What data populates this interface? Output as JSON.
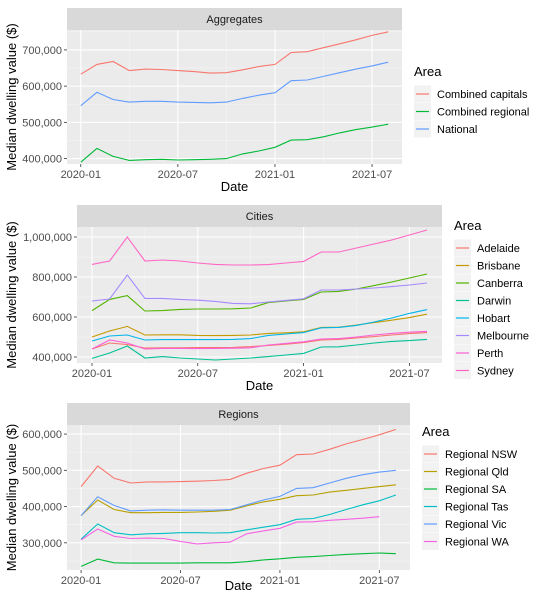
{
  "chart_data": [
    {
      "type": "line",
      "title": "Aggregates",
      "xlabel": "Date",
      "ylabel": "Median dwelling value ($)",
      "x": [
        "2020-01",
        "2020-02",
        "2020-03",
        "2020-04",
        "2020-05",
        "2020-06",
        "2020-07",
        "2020-08",
        "2020-09",
        "2020-10",
        "2020-11",
        "2020-12",
        "2021-01",
        "2021-02",
        "2021-03",
        "2021-04",
        "2021-05",
        "2021-06",
        "2021-07",
        "2021-08"
      ],
      "xticks": [
        "2020-01",
        "2020-07",
        "2021-01",
        "2021-07"
      ],
      "ylim": [
        385000,
        755000
      ],
      "yticks": [
        400000,
        500000,
        600000,
        700000
      ],
      "ytick_labels": [
        "400,000",
        "500,000",
        "600,000",
        "700,000"
      ],
      "grid": true,
      "legend": {
        "title": "Area",
        "position": "right"
      },
      "series": [
        {
          "name": "Combined capitals",
          "color": "#F8766D",
          "values": [
            633000,
            660000,
            668000,
            643000,
            647000,
            646000,
            643000,
            640000,
            636000,
            637000,
            645000,
            654000,
            660000,
            693000,
            695000,
            706000,
            717000,
            728000,
            740000,
            750000
          ]
        },
        {
          "name": "Combined regional",
          "color": "#00BA38",
          "values": [
            390000,
            428000,
            406000,
            395000,
            397000,
            398000,
            396000,
            397000,
            398000,
            400000,
            413000,
            421000,
            431000,
            451000,
            452000,
            460000,
            471000,
            480000,
            487000,
            495000
          ]
        },
        {
          "name": "National",
          "color": "#619CFF",
          "values": [
            546000,
            583000,
            563000,
            556000,
            558000,
            558000,
            556000,
            555000,
            554000,
            556000,
            566000,
            575000,
            582000,
            615000,
            617000,
            627000,
            637000,
            647000,
            656000,
            666000
          ]
        }
      ]
    },
    {
      "type": "line",
      "title": "Cities",
      "xlabel": "Date",
      "ylabel": "Median dwelling value ($)",
      "x": [
        "2020-01",
        "2020-02",
        "2020-03",
        "2020-04",
        "2020-05",
        "2020-06",
        "2020-07",
        "2020-08",
        "2020-09",
        "2020-10",
        "2020-11",
        "2020-12",
        "2021-01",
        "2021-02",
        "2021-03",
        "2021-04",
        "2021-05",
        "2021-06",
        "2021-07",
        "2021-08"
      ],
      "xticks": [
        "2020-01",
        "2020-07",
        "2021-01",
        "2021-07"
      ],
      "ylim": [
        370000,
        1050000
      ],
      "yticks": [
        400000,
        600000,
        800000,
        1000000
      ],
      "ytick_labels": [
        "400,000",
        "600,000",
        "800,000",
        "1,000,000"
      ],
      "grid": true,
      "legend": {
        "title": "Area",
        "position": "right"
      },
      "series": [
        {
          "name": "Adelaide",
          "color": "#F8766D",
          "values": [
            440000,
            470000,
            462000,
            445000,
            446000,
            446000,
            447000,
            447000,
            448000,
            452000,
            458000,
            464000,
            472000,
            485000,
            488000,
            495000,
            502000,
            510000,
            517000,
            522000
          ]
        },
        {
          "name": "Brisbane",
          "color": "#C49A00",
          "values": [
            500000,
            530000,
            553000,
            510000,
            511000,
            511000,
            508000,
            507000,
            508000,
            510000,
            518000,
            521000,
            526000,
            548000,
            549000,
            560000,
            572000,
            584000,
            597000,
            614000
          ]
        },
        {
          "name": "Canberra",
          "color": "#53B400",
          "values": [
            632000,
            688000,
            707000,
            630000,
            632000,
            638000,
            640000,
            640000,
            641000,
            645000,
            672000,
            680000,
            688000,
            725000,
            728000,
            740000,
            757000,
            775000,
            795000,
            815000
          ]
        },
        {
          "name": "Darwin",
          "color": "#00C094",
          "values": [
            393000,
            420000,
            455000,
            395000,
            402000,
            395000,
            390000,
            385000,
            390000,
            395000,
            402000,
            410000,
            418000,
            450000,
            451000,
            460000,
            470000,
            478000,
            482000,
            488000
          ]
        },
        {
          "name": "Hobart",
          "color": "#00B6EB",
          "values": [
            480000,
            505000,
            510000,
            485000,
            487000,
            487000,
            487000,
            487000,
            488000,
            492000,
            508000,
            515000,
            522000,
            546000,
            548000,
            558000,
            575000,
            595000,
            618000,
            637000
          ]
        },
        {
          "name": "Melbourne",
          "color": "#A58AFF",
          "values": [
            680000,
            690000,
            810000,
            693000,
            693000,
            688000,
            684000,
            678000,
            668000,
            666000,
            675000,
            683000,
            691000,
            735000,
            735000,
            740000,
            745000,
            752000,
            760000,
            770000
          ]
        },
        {
          "name": "Perth",
          "color": "#FB61D7",
          "values": [
            440000,
            485000,
            470000,
            440000,
            443000,
            443000,
            442000,
            443000,
            444000,
            446000,
            460000,
            468000,
            476000,
            490000,
            492000,
            500000,
            510000,
            518000,
            524000,
            528000
          ]
        },
        {
          "name": "Sydney",
          "color": "#FF66C4",
          "values": [
            863000,
            880000,
            1000000,
            880000,
            885000,
            880000,
            870000,
            863000,
            860000,
            860000,
            862000,
            870000,
            878000,
            925000,
            925000,
            945000,
            965000,
            985000,
            1010000,
            1035000
          ]
        }
      ]
    },
    {
      "type": "line",
      "title": "Regions",
      "xlabel": "Date",
      "ylabel": "Median dwelling value ($)",
      "x": [
        "2020-01",
        "2020-02",
        "2020-03",
        "2020-04",
        "2020-05",
        "2020-06",
        "2020-07",
        "2020-08",
        "2020-09",
        "2020-10",
        "2020-11",
        "2020-12",
        "2021-01",
        "2021-02",
        "2021-03",
        "2021-04",
        "2021-05",
        "2021-06",
        "2021-07",
        "2021-08"
      ],
      "xticks": [
        "2020-01",
        "2020-07",
        "2021-01",
        "2021-07"
      ],
      "ylim": [
        225000,
        625000
      ],
      "yticks": [
        300000,
        400000,
        500000,
        600000
      ],
      "ytick_labels": [
        "300,000",
        "400,000",
        "500,000",
        "600,000"
      ],
      "grid": true,
      "legend": {
        "title": "Area",
        "position": "right"
      },
      "series": [
        {
          "name": "Regional NSW",
          "color": "#F8766D",
          "values": [
            455000,
            512000,
            478000,
            465000,
            468000,
            468000,
            469000,
            470000,
            472000,
            475000,
            492000,
            505000,
            514000,
            543000,
            545000,
            558000,
            573000,
            585000,
            598000,
            613000
          ]
        },
        {
          "name": "Regional Qld",
          "color": "#B79F00",
          "values": [
            375000,
            418000,
            392000,
            383000,
            383000,
            384000,
            384000,
            385000,
            387000,
            390000,
            402000,
            413000,
            420000,
            430000,
            432000,
            440000,
            445000,
            450000,
            455000,
            460000
          ]
        },
        {
          "name": "Regional SA",
          "color": "#00BA38",
          "values": [
            235000,
            255000,
            245000,
            244000,
            244000,
            244000,
            244000,
            245000,
            245000,
            245000,
            248000,
            253000,
            256000,
            260000,
            262000,
            265000,
            268000,
            270000,
            272000,
            270000
          ]
        },
        {
          "name": "Regional Tas",
          "color": "#00BFC4",
          "values": [
            310000,
            352000,
            328000,
            322000,
            325000,
            326000,
            328000,
            328000,
            327000,
            328000,
            336000,
            343000,
            350000,
            365000,
            367000,
            378000,
            392000,
            405000,
            416000,
            432000
          ]
        },
        {
          "name": "Regional Vic",
          "color": "#619CFF",
          "values": [
            375000,
            427000,
            403000,
            388000,
            390000,
            391000,
            390000,
            390000,
            390000,
            392000,
            405000,
            418000,
            428000,
            450000,
            452000,
            465000,
            478000,
            488000,
            495000,
            500000
          ]
        },
        {
          "name": "Regional WA",
          "color": "#F564E3",
          "values": [
            308000,
            338000,
            318000,
            312000,
            313000,
            312000,
            304000,
            297000,
            300000,
            302000,
            325000,
            333000,
            340000,
            357000,
            358000,
            362000,
            365000,
            368000,
            372000,
            null
          ]
        }
      ]
    }
  ]
}
